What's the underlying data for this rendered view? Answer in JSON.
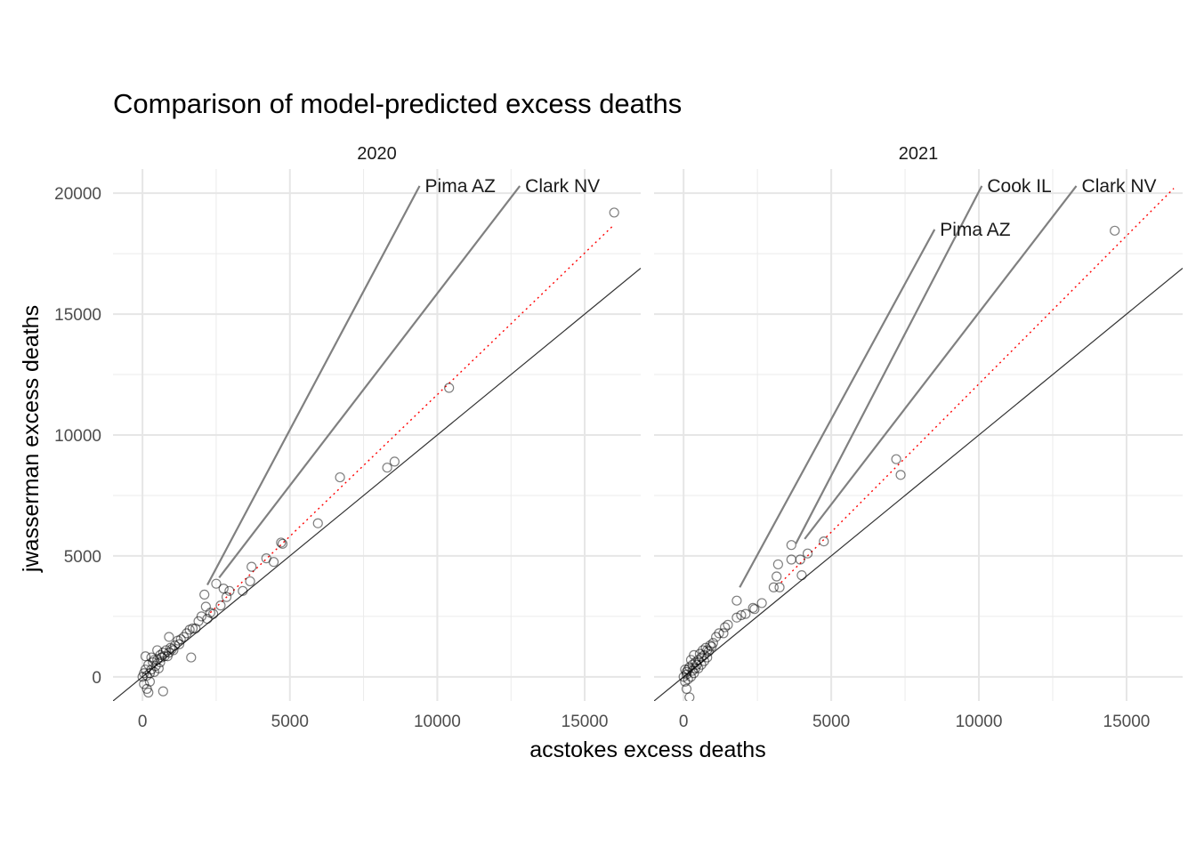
{
  "chart_data": {
    "type": "scatter",
    "title": "Comparison of model-predicted excess deaths",
    "xlabel": "acstokes excess deaths",
    "ylabel": "jwasserman excess deaths",
    "xlim": [
      -1000,
      16900
    ],
    "ylim": [
      -1000,
      21000
    ],
    "x_ticks": [
      0,
      5000,
      10000,
      15000
    ],
    "x_tick_labels": [
      "0",
      "5000",
      "10000",
      "15000"
    ],
    "y_ticks": [
      0,
      5000,
      10000,
      15000,
      20000
    ],
    "y_tick_labels": [
      "0",
      "5000",
      "10000",
      "15000",
      "20000"
    ],
    "grid": true,
    "reference_lines": [
      {
        "name": "y = x",
        "slope": 1,
        "intercept": 0,
        "style": "solid",
        "color": "#333333"
      },
      {
        "name": "fit",
        "style": "dotted",
        "color": "#ff0000"
      }
    ],
    "marker_color": "#000000",
    "panels": [
      {
        "label": "2020",
        "fit": {
          "x": [
            2300,
            16000
          ],
          "y": [
            2650,
            18700
          ]
        },
        "points": [
          [
            16000,
            19200
          ],
          [
            10400,
            11950
          ],
          [
            8550,
            8900
          ],
          [
            8300,
            8650
          ],
          [
            6700,
            8250
          ],
          [
            5950,
            6350
          ],
          [
            4750,
            5500
          ],
          [
            4700,
            5550
          ],
          [
            4450,
            4750
          ],
          [
            4200,
            4900
          ],
          [
            3700,
            4550
          ],
          [
            3650,
            3950
          ],
          [
            3400,
            3550
          ],
          [
            2950,
            3550
          ],
          [
            2850,
            3300
          ],
          [
            2750,
            3650
          ],
          [
            2500,
            3850
          ],
          [
            2300,
            2650
          ],
          [
            2100,
            3400
          ],
          [
            2150,
            2900
          ],
          [
            2000,
            2500
          ],
          [
            1900,
            2300
          ],
          [
            1700,
            2000
          ],
          [
            1500,
            1800
          ],
          [
            1400,
            1650
          ],
          [
            1200,
            1500
          ],
          [
            1100,
            1300
          ],
          [
            1650,
            800
          ],
          [
            900,
            1650
          ],
          [
            800,
            1100
          ],
          [
            700,
            -600
          ],
          [
            600,
            900
          ],
          [
            500,
            1100
          ],
          [
            400,
            700
          ],
          [
            300,
            800
          ],
          [
            200,
            500
          ],
          [
            100,
            300
          ],
          [
            0,
            0
          ],
          [
            50,
            -300
          ],
          [
            150,
            -500
          ],
          [
            200,
            -650
          ],
          [
            100,
            850
          ],
          [
            300,
            300
          ],
          [
            450,
            450
          ],
          [
            250,
            150
          ],
          [
            350,
            600
          ],
          [
            600,
            600
          ],
          [
            700,
            1000
          ],
          [
            850,
            850
          ],
          [
            950,
            1200
          ],
          [
            1050,
            1100
          ],
          [
            1250,
            1350
          ],
          [
            1300,
            1550
          ],
          [
            1600,
            1950
          ],
          [
            1800,
            2000
          ],
          [
            2200,
            2400
          ],
          [
            2400,
            2600
          ],
          [
            2650,
            2950
          ],
          [
            550,
            350
          ],
          [
            400,
            200
          ],
          [
            150,
            50
          ],
          [
            250,
            -200
          ],
          [
            50,
            150
          ],
          [
            500,
            700
          ],
          [
            650,
            800
          ],
          [
            750,
            850
          ],
          [
            900,
            1000
          ],
          [
            1000,
            1150
          ]
        ],
        "annotations": [
          {
            "label": "Pima AZ",
            "from": [
              2200,
              3800
            ],
            "to": [
              9400,
              20300
            ]
          },
          {
            "label": "Clark NV",
            "from": [
              2600,
              4100
            ],
            "to": [
              12800,
              20300
            ]
          }
        ]
      },
      {
        "label": "2021",
        "fit": {
          "x": [
            3300,
            16600
          ],
          "y": [
            3900,
            20200
          ]
        },
        "points": [
          [
            14600,
            18450
          ],
          [
            7200,
            9000
          ],
          [
            7350,
            8350
          ],
          [
            4750,
            5600
          ],
          [
            4200,
            5100
          ],
          [
            3950,
            4850
          ],
          [
            4000,
            4200
          ],
          [
            3650,
            5450
          ],
          [
            3650,
            4850
          ],
          [
            3200,
            4650
          ],
          [
            3150,
            4150
          ],
          [
            3050,
            3700
          ],
          [
            3250,
            3700
          ],
          [
            2650,
            3050
          ],
          [
            2400,
            2800
          ],
          [
            2350,
            2850
          ],
          [
            2100,
            2600
          ],
          [
            1950,
            2550
          ],
          [
            1800,
            2450
          ],
          [
            1800,
            3150
          ],
          [
            1500,
            2150
          ],
          [
            1400,
            2050
          ],
          [
            1350,
            1800
          ],
          [
            1200,
            1800
          ],
          [
            1100,
            1650
          ],
          [
            1000,
            1400
          ],
          [
            900,
            1300
          ],
          [
            800,
            1100
          ],
          [
            700,
            900
          ],
          [
            600,
            800
          ],
          [
            500,
            700
          ],
          [
            400,
            600
          ],
          [
            300,
            500
          ],
          [
            200,
            400
          ],
          [
            100,
            200
          ],
          [
            0,
            0
          ],
          [
            50,
            -200
          ],
          [
            100,
            -500
          ],
          [
            200,
            -850
          ],
          [
            150,
            300
          ],
          [
            250,
            700
          ],
          [
            350,
            900
          ],
          [
            450,
            500
          ],
          [
            550,
            950
          ],
          [
            650,
            1100
          ],
          [
            750,
            1200
          ],
          [
            850,
            1050
          ],
          [
            950,
            1250
          ],
          [
            50,
            300
          ],
          [
            100,
            100
          ],
          [
            300,
            250
          ],
          [
            400,
            350
          ],
          [
            600,
            500
          ],
          [
            700,
            650
          ],
          [
            800,
            800
          ],
          [
            250,
            0
          ],
          [
            150,
            -100
          ],
          [
            350,
            150
          ],
          [
            500,
            350
          ]
        ],
        "annotations": [
          {
            "label": "Cook IL",
            "from": [
              3800,
              5500
            ],
            "to": [
              10100,
              20300
            ]
          },
          {
            "label": "Pima AZ",
            "from": [
              1900,
              3700
            ],
            "to": [
              8500,
              18500
            ]
          },
          {
            "label": "Clark NV",
            "from": [
              4100,
              5700
            ],
            "to": [
              13300,
              20300
            ]
          }
        ]
      }
    ]
  }
}
